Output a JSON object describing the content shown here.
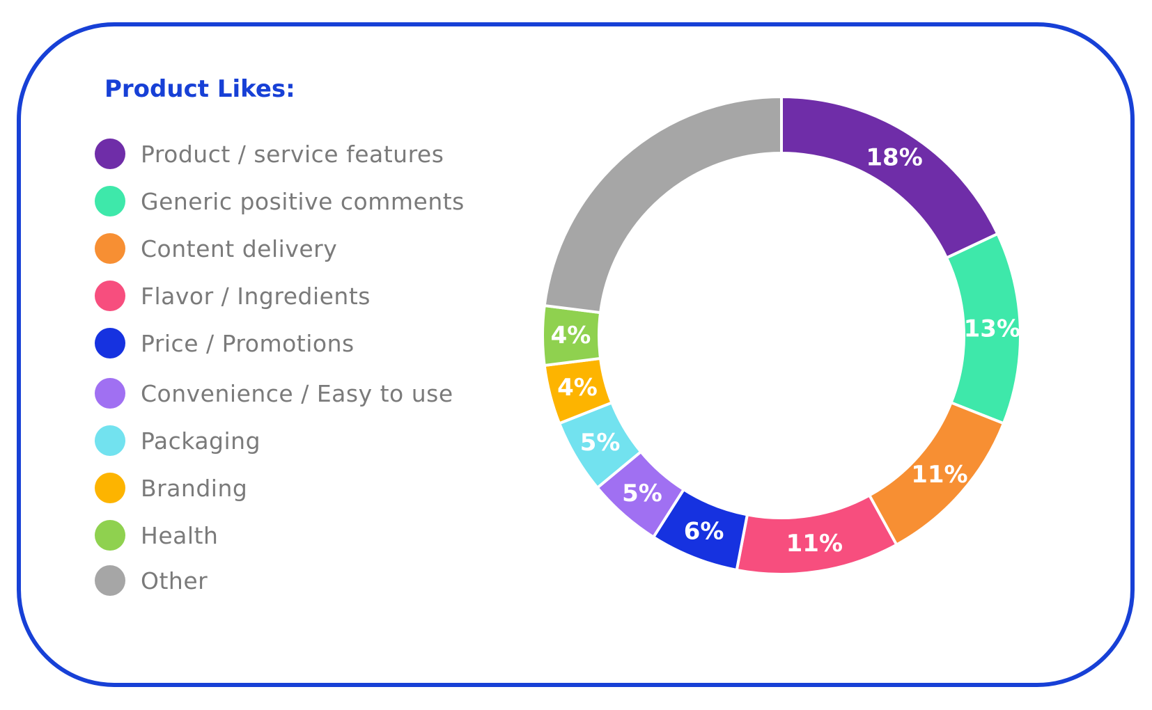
{
  "title": "Product Likes:",
  "chart_data": {
    "type": "pie",
    "title": "Product Likes:",
    "donut": true,
    "legend_position": "left",
    "start_angle_deg": 0,
    "direction": "clockwise",
    "categories": [
      "Product / service features",
      "Generic positive comments",
      "Content delivery",
      "Flavor / Ingredients",
      "Price / Promotions",
      "Convenience / Easy to use",
      "Packaging",
      "Branding",
      "Health",
      "Other"
    ],
    "values": [
      18,
      13,
      11,
      11,
      6,
      5,
      5,
      4,
      4,
      23
    ],
    "labels": [
      "18%",
      "13%",
      "11%",
      "11%",
      "6%",
      "5%",
      "5%",
      "4%",
      "4%",
      ""
    ],
    "colors": [
      "#6f2da8",
      "#3ee8aa",
      "#f78f33",
      "#f74e7e",
      "#1632e0",
      "#a070f2",
      "#72e2ef",
      "#fdb400",
      "#8fd14f",
      "#a6a6a6"
    ]
  }
}
